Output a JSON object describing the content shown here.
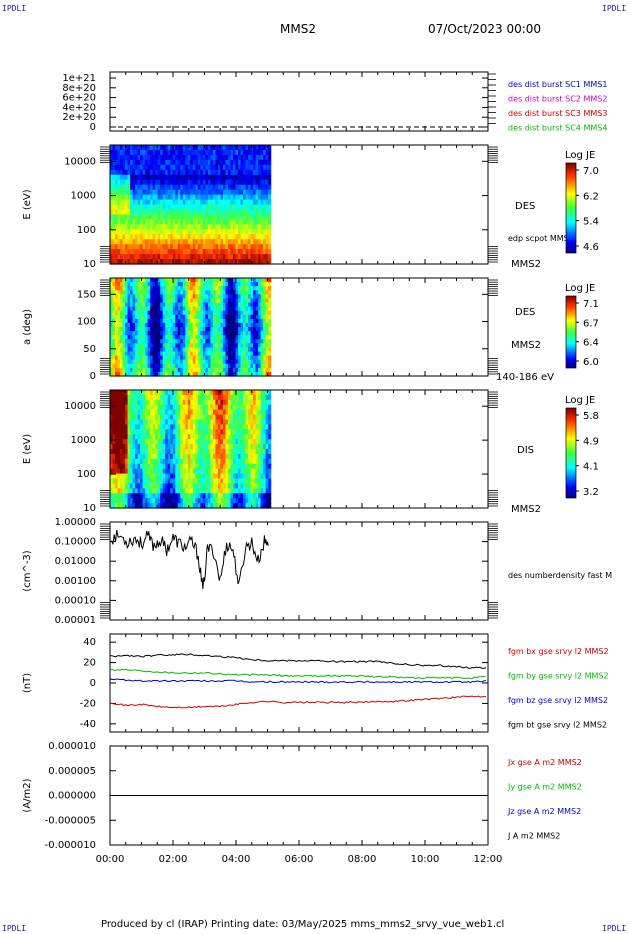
{
  "corner_labels": {
    "tl": "IPDLI",
    "tr": "IPDLI",
    "bl": "IPDLI",
    "br": "IPDLI"
  },
  "header": {
    "spacecraft": "MMS2",
    "date": "07/Oct/2023 00:00"
  },
  "footer": {
    "text": "Produced by cl (IRAP)   Printing date: 03/May/2025   mms_mms2_srvy_vue_web1.cl"
  },
  "colors": {
    "blue": "#0000cc",
    "magenta": "#cc00cc",
    "red": "#cc0000",
    "green": "#00bb00",
    "black": "#000000"
  },
  "chart_data": [
    {
      "type": "line",
      "id": "dist-burst",
      "y_ticks": [
        "1e+21",
        "8e+20",
        "6e+20",
        "4e+20",
        "2e+20",
        "0"
      ],
      "ylim": [
        0,
        1e+21
      ],
      "legend": [
        {
          "label": "des dist burst SC1 MMS1",
          "color": "#0000cc"
        },
        {
          "label": "des dist burst SC2 MMS2",
          "color": "#cc00cc"
        },
        {
          "label": "des dist burst SC3 MMS3",
          "color": "#cc0000"
        },
        {
          "label": "des dist burst SC4 MMS4",
          "color": "#00bb00"
        }
      ],
      "series": [
        {
          "values": [
            0,
            0
          ]
        }
      ]
    },
    {
      "type": "heatmap",
      "id": "des-energy",
      "ylabel": "E (eV)",
      "y_ticks": [
        "10000",
        "1000",
        "100",
        "10"
      ],
      "ylim": [
        10,
        30000
      ],
      "yscale": "log",
      "data_x_range_hours": [
        0,
        5.1
      ],
      "right_labels": [
        "DES",
        "edp scpot MMS2",
        "MMS2"
      ],
      "colorbar": {
        "title": "Log JE",
        "ticks": [
          "7.0",
          "6.2",
          "5.4",
          "4.6"
        ],
        "range": [
          4.6,
          7.0
        ]
      }
    },
    {
      "type": "heatmap",
      "id": "des-pitch",
      "ylabel": "a (deg)",
      "y_ticks": [
        "150",
        "100",
        "50",
        "0"
      ],
      "ylim": [
        0,
        180
      ],
      "data_x_range_hours": [
        0,
        5.1
      ],
      "right_labels": [
        "DES",
        "MMS2",
        "140-186 eV"
      ],
      "colorbar": {
        "title": "Log JE",
        "ticks": [
          "7.1",
          "6.7",
          "6.4",
          "6.0"
        ],
        "range": [
          6.0,
          7.1
        ]
      }
    },
    {
      "type": "heatmap",
      "id": "dis-energy",
      "ylabel": "E (eV)",
      "y_ticks": [
        "10000",
        "1000",
        "100",
        "10"
      ],
      "ylim": [
        10,
        30000
      ],
      "yscale": "log",
      "data_x_range_hours": [
        0,
        5.1
      ],
      "right_labels": [
        "DIS",
        "MMS2"
      ],
      "colorbar": {
        "title": "Log JE",
        "ticks": [
          "5.8",
          "4.9",
          "4.1",
          "3.2"
        ],
        "range": [
          3.2,
          5.8
        ]
      }
    },
    {
      "type": "line",
      "id": "density",
      "ylabel": "(cm^-3)",
      "y_ticks": [
        "1.00000",
        "0.10000",
        "0.01000",
        "0.00100",
        "0.00010",
        "0.00001"
      ],
      "ylim": [
        1e-05,
        1
      ],
      "yscale": "log",
      "legend": [
        {
          "label": "des numberdensity fast M",
          "color": "#000000"
        }
      ],
      "series": [
        {
          "name": "des numberdensity fast M",
          "x": [
            0.05,
            0.3,
            0.55,
            0.8,
            1.0,
            1.2,
            1.4,
            1.6,
            1.8,
            2.0,
            2.2,
            2.4,
            2.6,
            2.8,
            2.95,
            3.1,
            3.3,
            3.5,
            3.7,
            3.9,
            4.1,
            4.3,
            4.5,
            4.7,
            4.9,
            5.05
          ],
          "values": [
            0.15,
            0.2,
            0.1,
            0.15,
            0.08,
            0.18,
            0.06,
            0.12,
            0.04,
            0.15,
            0.08,
            0.05,
            0.1,
            0.02,
            0.0003,
            0.05,
            0.03,
            0.001,
            0.08,
            0.04,
            0.0005,
            0.05,
            0.09,
            0.01,
            0.1,
            0.08
          ]
        }
      ]
    },
    {
      "type": "line",
      "id": "fgm",
      "ylabel": "(nT)",
      "y_ticks": [
        "40",
        "20",
        "0",
        "-20",
        "-40"
      ],
      "ylim": [
        -48,
        48
      ],
      "legend": [
        {
          "label": "fgm bx gse srvy l2 MMS2",
          "color": "#cc0000"
        },
        {
          "label": "fgm by gse srvy l2 MMS2",
          "color": "#00bb00"
        },
        {
          "label": "fgm bz gse srvy l2 MMS2",
          "color": "#0000cc"
        },
        {
          "label": "fgm bt gse srvy l2 MMS2",
          "color": "#000000"
        }
      ],
      "x": [
        0,
        0.5,
        1,
        1.5,
        2,
        2.5,
        3,
        3.5,
        4,
        4.5,
        5,
        5.5,
        6,
        6.5,
        7,
        7.5,
        8,
        8.5,
        9,
        9.5,
        10,
        10.5,
        11,
        11.5,
        12
      ],
      "series": [
        {
          "name": "fgm bx gse srvy l2 MMS2",
          "color": "#cc0000",
          "values": [
            -19,
            -22,
            -21,
            -23,
            -24,
            -24,
            -23,
            -23,
            -21,
            -19,
            -18,
            -19,
            -19,
            -19,
            -19,
            -19,
            -19,
            -18,
            -18,
            -17,
            -16,
            -15,
            -14,
            -13,
            -13
          ]
        },
        {
          "name": "fgm by gse srvy l2 MMS2",
          "color": "#00bb00",
          "values": [
            13,
            13,
            12,
            11,
            10,
            10,
            10,
            9,
            8,
            8,
            8,
            7,
            7,
            7,
            7,
            7,
            7,
            6,
            6,
            5,
            5,
            5,
            5,
            5,
            6
          ]
        },
        {
          "name": "fgm bz gse srvy l2 MMS2",
          "color": "#0000cc",
          "values": [
            4,
            3,
            2,
            2,
            2,
            2,
            2,
            2,
            2,
            1,
            1,
            1,
            1,
            1,
            1,
            1,
            1,
            1,
            1,
            1,
            1,
            1,
            1,
            1,
            2
          ]
        },
        {
          "name": "fgm bt gse srvy l2 MMS2",
          "color": "#000000",
          "values": [
            26,
            27,
            26,
            27,
            28,
            28,
            27,
            26,
            25,
            23,
            22,
            22,
            22,
            22,
            21,
            21,
            21,
            21,
            19,
            18,
            17,
            17,
            16,
            15,
            15
          ]
        }
      ]
    },
    {
      "type": "line",
      "id": "current",
      "ylabel": "(A/m2)",
      "y_ticks": [
        "0.000010",
        "0.000005",
        "0.000000",
        "-0.000005",
        "-0.000010"
      ],
      "ylim": [
        -1e-05,
        1e-05
      ],
      "legend": [
        {
          "label": "Jx gse A m2 MMS2",
          "color": "#cc0000"
        },
        {
          "label": "Jy gse A m2 MMS2",
          "color": "#00bb00"
        },
        {
          "label": "Jz gse A m2 MMS2",
          "color": "#0000cc"
        },
        {
          "label": "J A m2 MMS2",
          "color": "#000000"
        }
      ],
      "series": [
        {
          "name": "J A m2 MMS2",
          "values": [
            0,
            0
          ]
        }
      ]
    }
  ],
  "x_axis": {
    "ticks": [
      "00:00",
      "02:00",
      "04:00",
      "06:00",
      "08:00",
      "10:00",
      "12:00"
    ],
    "range_hours": [
      0,
      12
    ]
  }
}
